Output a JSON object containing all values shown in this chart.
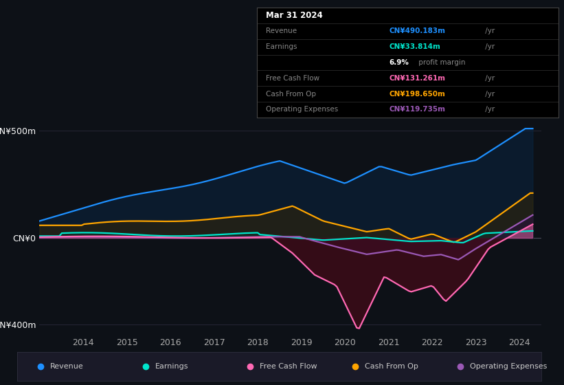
{
  "bg_color": "#0d1117",
  "ylabel_500": "CN¥500m",
  "ylabel_0": "CN¥0",
  "ylabel_neg400": "-CN¥400m",
  "x_labels": [
    "2014",
    "2015",
    "2016",
    "2017",
    "2018",
    "2019",
    "2020",
    "2021",
    "2022",
    "2023",
    "2024"
  ],
  "legend_items": [
    {
      "label": "Revenue",
      "color": "#1e90ff"
    },
    {
      "label": "Earnings",
      "color": "#00e5cc"
    },
    {
      "label": "Free Cash Flow",
      "color": "#ff69b4"
    },
    {
      "label": "Cash From Op",
      "color": "#ffa500"
    },
    {
      "label": "Operating Expenses",
      "color": "#9b59b6"
    }
  ],
  "colors": {
    "revenue": "#1e90ff",
    "earnings": "#00e5cc",
    "free_cash_flow": "#ff69b4",
    "cash_from_op": "#ffa500",
    "operating_expenses": "#9b59b6"
  },
  "info_rows": [
    {
      "label": "Revenue",
      "value": "CN¥490.183m",
      "suffix": " /yr",
      "color": "#1e90ff",
      "is_title": false,
      "is_margin": false
    },
    {
      "label": "Earnings",
      "value": "CN¥33.814m",
      "suffix": " /yr",
      "color": "#00e5cc",
      "is_title": false,
      "is_margin": false
    },
    {
      "label": "",
      "value": "6.9%",
      "suffix": " profit margin",
      "color": "#aaaaaa",
      "is_title": false,
      "is_margin": true
    },
    {
      "label": "Free Cash Flow",
      "value": "CN¥131.261m",
      "suffix": " /yr",
      "color": "#ff69b4",
      "is_title": false,
      "is_margin": false
    },
    {
      "label": "Cash From Op",
      "value": "CN¥198.650m",
      "suffix": " /yr",
      "color": "#ffa500",
      "is_title": false,
      "is_margin": false
    },
    {
      "label": "Operating Expenses",
      "value": "CN¥119.735m",
      "suffix": " /yr",
      "color": "#9b59b6",
      "is_title": false,
      "is_margin": false
    }
  ]
}
